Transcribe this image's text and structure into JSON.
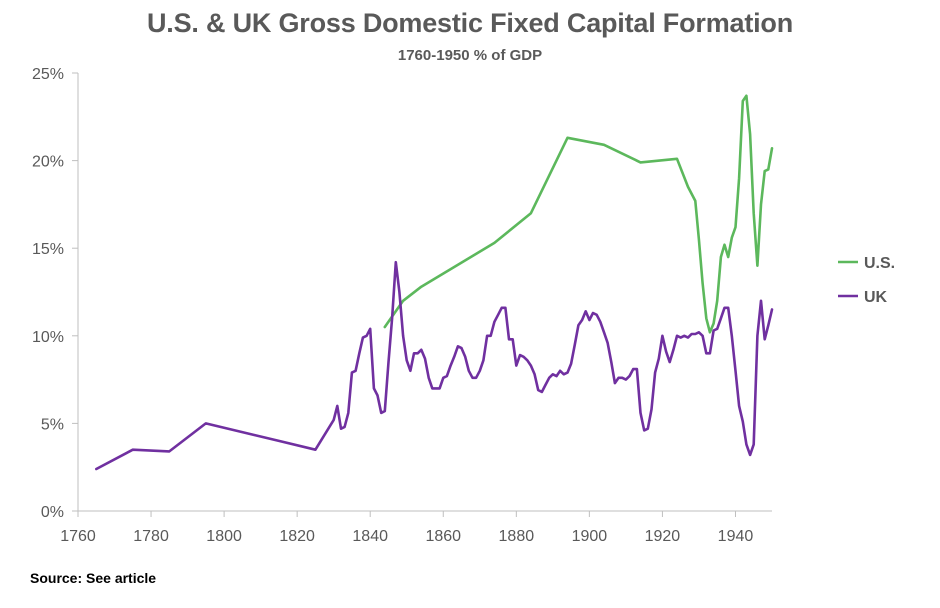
{
  "chart_data": {
    "type": "line",
    "title": "U.S. & UK Gross Domestic Fixed Capital Formation",
    "subtitle": "1760-1950 % of GDP",
    "xlabel": "",
    "ylabel": "",
    "xlim": [
      1760,
      1950
    ],
    "ylim": [
      0,
      25
    ],
    "x_ticks": [
      1760,
      1780,
      1800,
      1820,
      1840,
      1860,
      1880,
      1900,
      1920,
      1940
    ],
    "y_ticks": [
      0,
      5,
      10,
      15,
      20,
      25
    ],
    "y_tick_labels": [
      "0%",
      "5%",
      "10%",
      "15%",
      "20%",
      "25%"
    ],
    "legend_position": "right",
    "series": [
      {
        "name": "U.S.",
        "color": "#5cb85c",
        "points": [
          [
            1844,
            10.5
          ],
          [
            1849,
            12.0
          ],
          [
            1854,
            12.8
          ],
          [
            1874,
            15.3
          ],
          [
            1884,
            17.0
          ],
          [
            1894,
            21.3
          ],
          [
            1904,
            20.9
          ],
          [
            1914,
            19.9
          ],
          [
            1924,
            20.1
          ],
          [
            1927,
            18.5
          ],
          [
            1929,
            17.7
          ],
          [
            1930,
            15.5
          ],
          [
            1931,
            13.0
          ],
          [
            1932,
            11.0
          ],
          [
            1933,
            10.2
          ],
          [
            1934,
            10.7
          ],
          [
            1935,
            12.0
          ],
          [
            1936,
            14.5
          ],
          [
            1937,
            15.2
          ],
          [
            1938,
            14.5
          ],
          [
            1939,
            15.6
          ],
          [
            1940,
            16.2
          ],
          [
            1941,
            19.0
          ],
          [
            1942,
            23.4
          ],
          [
            1943,
            23.7
          ],
          [
            1944,
            21.5
          ],
          [
            1945,
            17.0
          ],
          [
            1946,
            14.0
          ],
          [
            1947,
            17.5
          ],
          [
            1948,
            19.4
          ],
          [
            1949,
            19.5
          ],
          [
            1950,
            20.7
          ]
        ]
      },
      {
        "name": "UK",
        "color": "#7030a0",
        "points": [
          [
            1765,
            2.4
          ],
          [
            1775,
            3.5
          ],
          [
            1785,
            3.4
          ],
          [
            1795,
            5.0
          ],
          [
            1815,
            4.0
          ],
          [
            1825,
            3.5
          ],
          [
            1830,
            5.2
          ],
          [
            1831,
            6.0
          ],
          [
            1832,
            4.7
          ],
          [
            1833,
            4.8
          ],
          [
            1834,
            5.6
          ],
          [
            1835,
            7.9
          ],
          [
            1836,
            8.0
          ],
          [
            1837,
            9.0
          ],
          [
            1838,
            9.9
          ],
          [
            1839,
            10.0
          ],
          [
            1840,
            10.4
          ],
          [
            1841,
            7.0
          ],
          [
            1842,
            6.6
          ],
          [
            1843,
            5.6
          ],
          [
            1844,
            5.7
          ],
          [
            1845,
            8.5
          ],
          [
            1846,
            11.0
          ],
          [
            1847,
            14.2
          ],
          [
            1848,
            12.5
          ],
          [
            1849,
            10.0
          ],
          [
            1850,
            8.6
          ],
          [
            1851,
            8.0
          ],
          [
            1852,
            9.0
          ],
          [
            1853,
            9.0
          ],
          [
            1854,
            9.2
          ],
          [
            1855,
            8.7
          ],
          [
            1856,
            7.6
          ],
          [
            1857,
            7.0
          ],
          [
            1858,
            7.0
          ],
          [
            1859,
            7.0
          ],
          [
            1860,
            7.6
          ],
          [
            1861,
            7.7
          ],
          [
            1862,
            8.3
          ],
          [
            1863,
            8.8
          ],
          [
            1864,
            9.4
          ],
          [
            1865,
            9.3
          ],
          [
            1866,
            8.8
          ],
          [
            1867,
            8.0
          ],
          [
            1868,
            7.6
          ],
          [
            1869,
            7.6
          ],
          [
            1870,
            8.0
          ],
          [
            1871,
            8.6
          ],
          [
            1872,
            10.0
          ],
          [
            1873,
            10.0
          ],
          [
            1874,
            10.8
          ],
          [
            1875,
            11.2
          ],
          [
            1876,
            11.6
          ],
          [
            1877,
            11.6
          ],
          [
            1878,
            9.8
          ],
          [
            1879,
            9.8
          ],
          [
            1880,
            8.3
          ],
          [
            1881,
            8.9
          ],
          [
            1882,
            8.8
          ],
          [
            1883,
            8.6
          ],
          [
            1884,
            8.3
          ],
          [
            1885,
            7.8
          ],
          [
            1886,
            6.9
          ],
          [
            1887,
            6.8
          ],
          [
            1888,
            7.2
          ],
          [
            1889,
            7.6
          ],
          [
            1890,
            7.8
          ],
          [
            1891,
            7.7
          ],
          [
            1892,
            8.0
          ],
          [
            1893,
            7.8
          ],
          [
            1894,
            7.9
          ],
          [
            1895,
            8.4
          ],
          [
            1896,
            9.5
          ],
          [
            1897,
            10.6
          ],
          [
            1898,
            10.9
          ],
          [
            1899,
            11.4
          ],
          [
            1900,
            10.9
          ],
          [
            1901,
            11.3
          ],
          [
            1902,
            11.2
          ],
          [
            1903,
            10.8
          ],
          [
            1904,
            10.2
          ],
          [
            1905,
            9.6
          ],
          [
            1906,
            8.5
          ],
          [
            1907,
            7.3
          ],
          [
            1908,
            7.6
          ],
          [
            1909,
            7.6
          ],
          [
            1910,
            7.5
          ],
          [
            1911,
            7.7
          ],
          [
            1912,
            8.1
          ],
          [
            1913,
            8.1
          ],
          [
            1914,
            5.6
          ],
          [
            1915,
            4.6
          ],
          [
            1916,
            4.7
          ],
          [
            1917,
            5.8
          ],
          [
            1918,
            7.9
          ],
          [
            1919,
            8.7
          ],
          [
            1920,
            10.0
          ],
          [
            1921,
            9.1
          ],
          [
            1922,
            8.5
          ],
          [
            1923,
            9.2
          ],
          [
            1924,
            10.0
          ],
          [
            1925,
            9.9
          ],
          [
            1926,
            10.0
          ],
          [
            1927,
            9.9
          ],
          [
            1928,
            10.1
          ],
          [
            1929,
            10.1
          ],
          [
            1930,
            10.2
          ],
          [
            1931,
            10.0
          ],
          [
            1932,
            9.0
          ],
          [
            1933,
            9.0
          ],
          [
            1934,
            10.3
          ],
          [
            1935,
            10.4
          ],
          [
            1936,
            11.0
          ],
          [
            1937,
            11.6
          ],
          [
            1938,
            11.6
          ],
          [
            1939,
            10.0
          ],
          [
            1940,
            8.0
          ],
          [
            1941,
            6.0
          ],
          [
            1942,
            5.1
          ],
          [
            1943,
            3.8
          ],
          [
            1944,
            3.2
          ],
          [
            1945,
            3.8
          ],
          [
            1946,
            10.0
          ],
          [
            1947,
            12.0
          ],
          [
            1948,
            9.8
          ],
          [
            1949,
            10.6
          ],
          [
            1950,
            11.5
          ]
        ]
      }
    ]
  },
  "source_note": "Source: See article"
}
